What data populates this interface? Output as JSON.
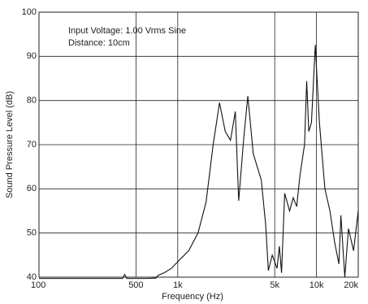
{
  "chart_data": {
    "type": "line",
    "x_label": "Frequency (Hz)",
    "y_label": "Sound Pressure Level (dB)",
    "annotations": [
      "Input Voltage: 1.00 Vrms Sine",
      "Distance: 10cm"
    ],
    "x_log": true,
    "grid": true,
    "xlim": [
      100,
      20000
    ],
    "xticks": [
      100,
      500,
      {
        "value": 1000,
        "label": "1k"
      },
      {
        "value": 5000,
        "label": "5k"
      },
      {
        "value": 10000,
        "label": "10k"
      },
      {
        "value": 20000,
        "label": "20k"
      }
    ],
    "ylim": [
      40,
      100
    ],
    "yticks": [
      40,
      50,
      60,
      70,
      80,
      90,
      100
    ],
    "series": [
      {
        "color": "#111111",
        "x": [
          100,
          200,
          300,
          400,
          415,
          430,
          600,
          700,
          720,
          800,
          900,
          1000,
          1200,
          1400,
          1600,
          1800,
          2000,
          2200,
          2400,
          2600,
          2750,
          3000,
          3200,
          3500,
          4000,
          4300,
          4500,
          4800,
          5200,
          5400,
          5600,
          5900,
          6400,
          6800,
          7200,
          7600,
          8200,
          8500,
          8800,
          9200,
          9800,
          10500,
          11500,
          12500,
          13500,
          14500,
          15000,
          16000,
          17000,
          18500,
          20000
        ],
        "values": [
          39.7,
          39.7,
          39.7,
          39.7,
          40.6,
          39.7,
          39.7,
          39.8,
          40.4,
          41,
          42,
          43.5,
          46,
          50,
          57,
          70,
          79.5,
          73,
          71,
          77.5,
          57.3,
          72,
          81,
          68,
          62,
          52,
          41.5,
          45,
          42,
          47,
          41,
          59,
          55,
          58,
          56,
          63,
          70,
          84.4,
          73,
          75,
          92.6,
          75,
          60,
          55,
          48,
          43,
          54,
          40,
          51,
          46,
          55
        ]
      }
    ]
  }
}
